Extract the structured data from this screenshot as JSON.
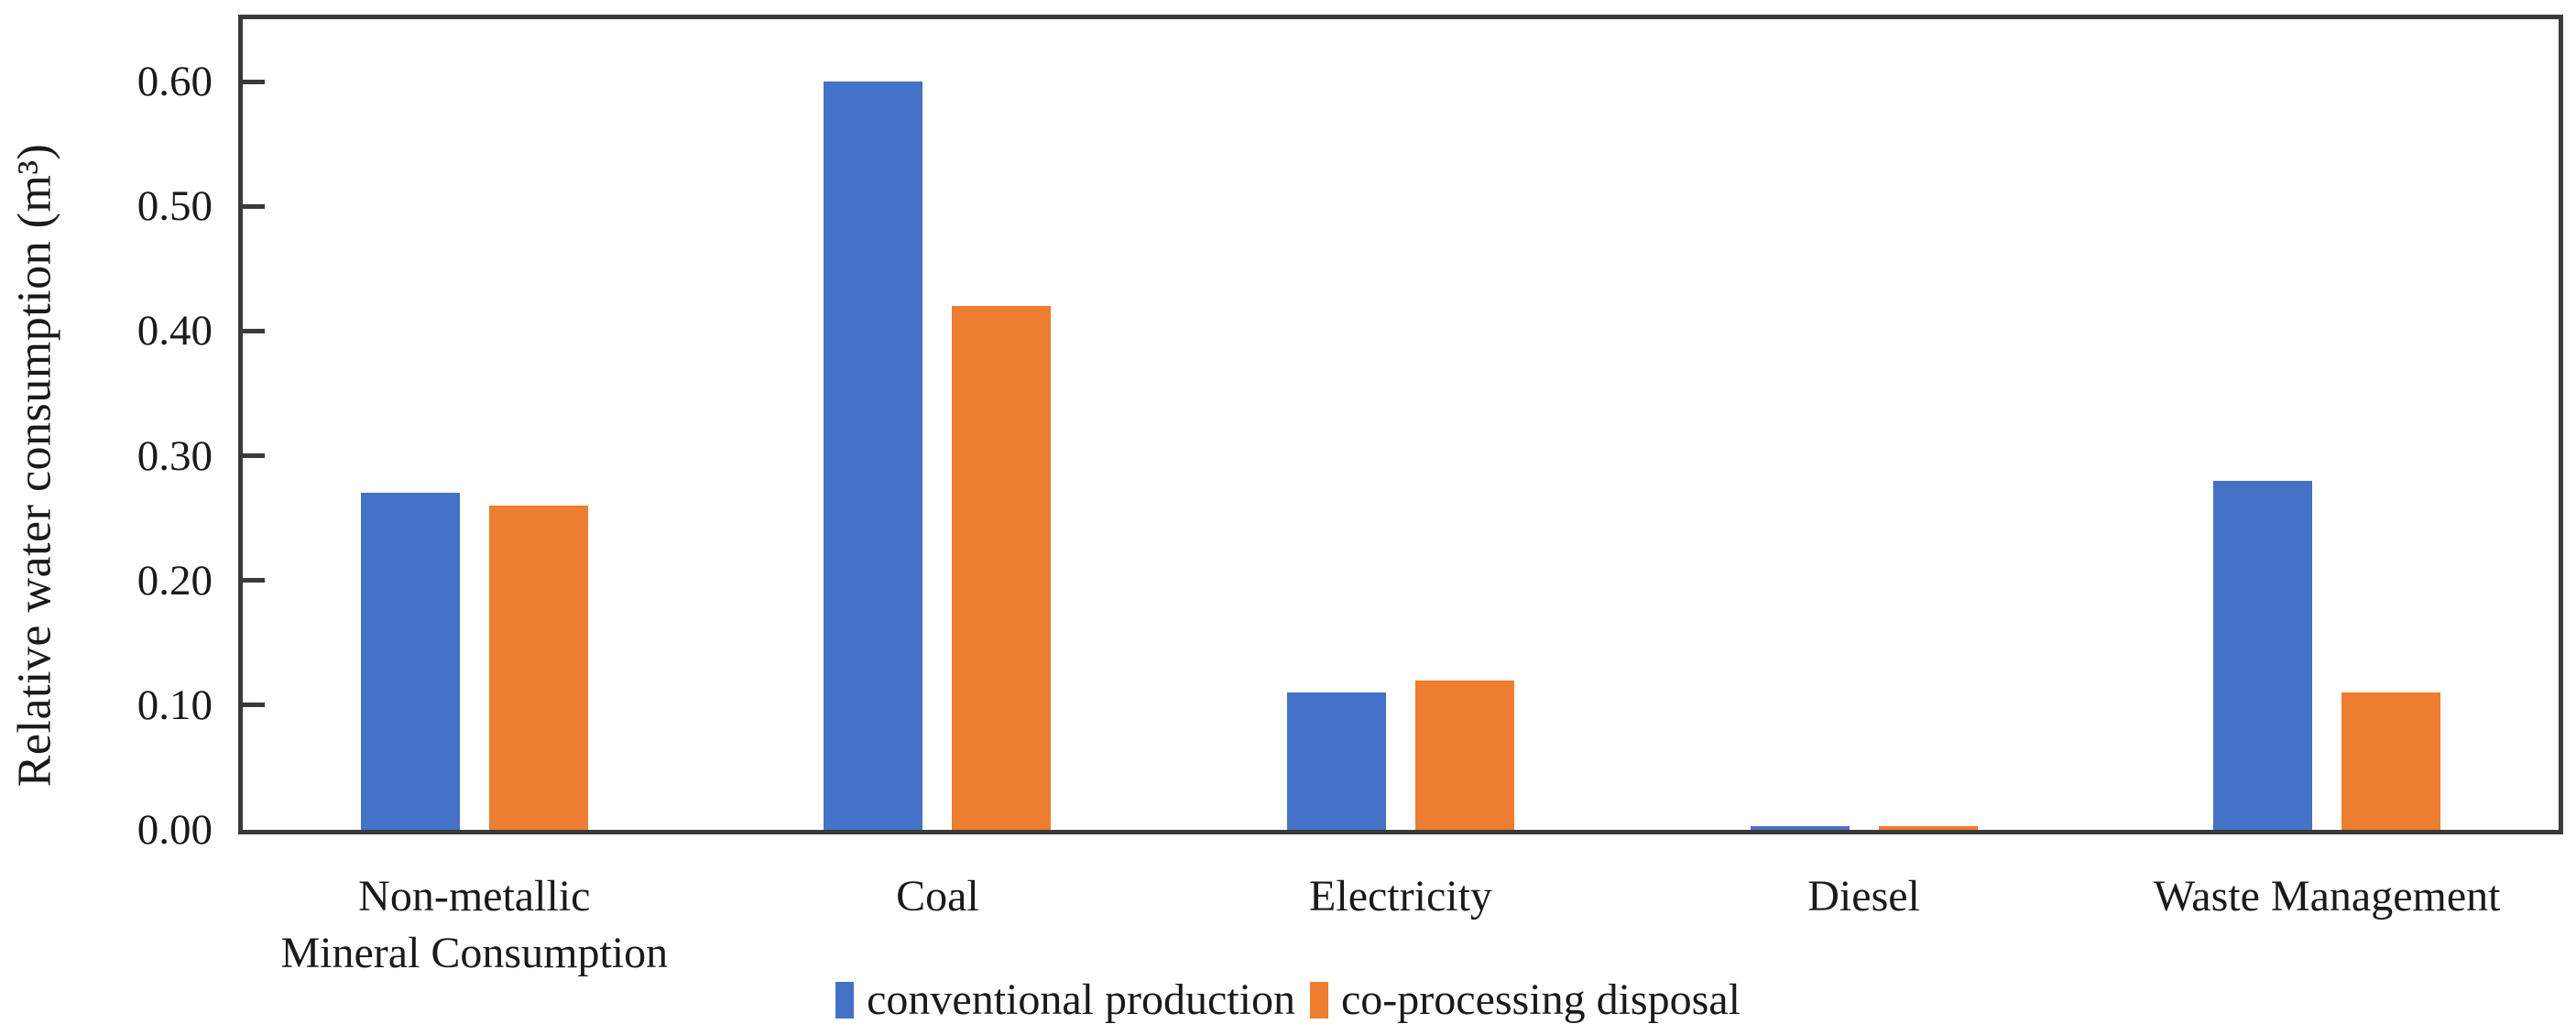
{
  "figure": {
    "background": "#ffffff",
    "frame_color": "#3a3a3a",
    "text_color": "#1a1a1a"
  },
  "chart_data": {
    "type": "bar",
    "title": "",
    "xlabel": "",
    "ylabel": "Relative water consumption (m³)",
    "categories": [
      "Non-metallic Mineral Consumption",
      "Coal",
      "Electricity",
      "Diesel",
      "Waste Management"
    ],
    "category_display_lines": [
      [
        "Non-metallic",
        "Mineral Consumption"
      ],
      [
        "Coal"
      ],
      [
        "Electricity"
      ],
      [
        "Diesel"
      ],
      [
        "Waste Management"
      ]
    ],
    "series": [
      {
        "name": "conventional production",
        "color": "#4472C4",
        "values": [
          0.27,
          0.6,
          0.11,
          0.003,
          0.28
        ]
      },
      {
        "name": "co-processing disposal",
        "color": "#ED7D31",
        "values": [
          0.26,
          0.42,
          0.12,
          0.003,
          0.11
        ]
      }
    ],
    "ylim": [
      0,
      0.65
    ],
    "yticks": [
      0.0,
      0.1,
      0.2,
      0.3,
      0.4,
      0.5,
      0.6
    ],
    "ytick_labels": [
      "0.00",
      "0.10",
      "0.20",
      "0.30",
      "0.40",
      "0.50",
      "0.60"
    ],
    "grid": false,
    "legend_position": "bottom"
  }
}
